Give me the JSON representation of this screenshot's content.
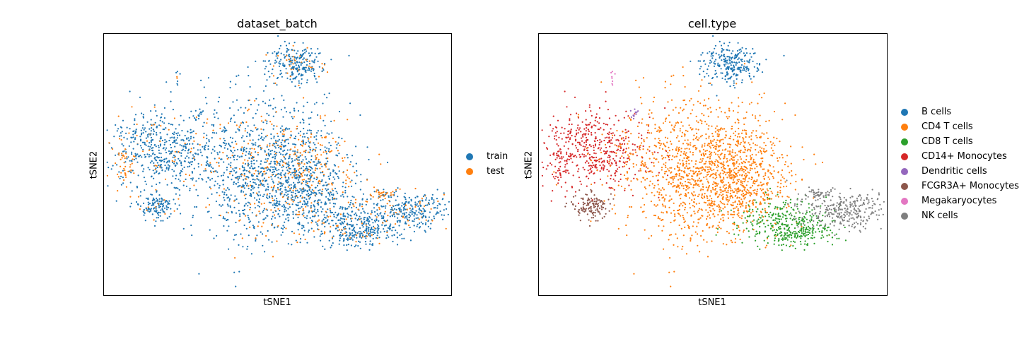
{
  "chart_data": [
    {
      "type": "scatter",
      "title": "dataset_batch",
      "xlabel": "tSNE1",
      "ylabel": "tSNE2",
      "grid": false,
      "legend_position": "right",
      "series": [
        {
          "name": "train",
          "color": "#1f77b4"
        },
        {
          "name": "test",
          "color": "#ff7f0e"
        }
      ]
    },
    {
      "type": "scatter",
      "title": "cell.type",
      "xlabel": "tSNE1",
      "ylabel": "tSNE2",
      "grid": false,
      "legend_position": "right",
      "series": [
        {
          "name": "B cells",
          "color": "#1f77b4"
        },
        {
          "name": "CD4 T cells",
          "color": "#ff7f0e"
        },
        {
          "name": "CD8 T cells",
          "color": "#2ca02c"
        },
        {
          "name": "CD14+ Monocytes",
          "color": "#d62728"
        },
        {
          "name": "Dendritic cells",
          "color": "#9467bd"
        },
        {
          "name": "FCGR3A+ Monocytes",
          "color": "#8c564b"
        },
        {
          "name": "Megakaryocytes",
          "color": "#e377c2"
        },
        {
          "name": "NK cells",
          "color": "#7f7f7f"
        }
      ]
    }
  ]
}
